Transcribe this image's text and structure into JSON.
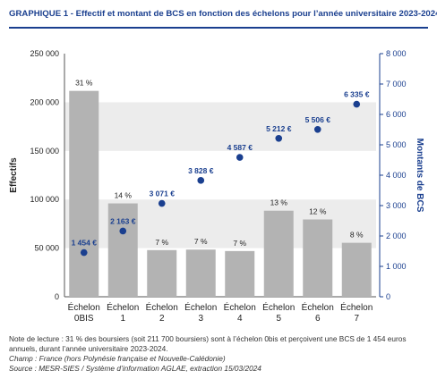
{
  "header": {
    "prefix": "GRAPHIQUE 1",
    "title": " - Effectif et montant de BCS en fonction des échelons pour l’année universitaire 2023-2024"
  },
  "notes": {
    "lecture": "Note de lecture : 31 % des boursiers (soit 211 700 boursiers) sont à l’échelon 0bis et perçoivent une BCS de 1 454 euros annuels, durant l’année universitaire 2023-2024.",
    "champ": "Champ : France (hors Polynésie française et Nouvelle-Calédonie)",
    "source": "Source : MESR-SIES / Système d’information AGLAE, extraction 15/03/2024"
  },
  "colors": {
    "bar": "#b3b3b3",
    "point": "#1a3f8f",
    "label_right": "#1a3f8f",
    "band": "#ececec",
    "axis_right": "#1a3f8f"
  },
  "chart_data": {
    "type": "bar",
    "categories": [
      [
        "Échelon",
        "0BIS"
      ],
      [
        "Échelon",
        "1"
      ],
      [
        "Échelon",
        "2"
      ],
      [
        "Échelon",
        "3"
      ],
      [
        "Échelon",
        "4"
      ],
      [
        "Échelon",
        "5"
      ],
      [
        "Échelon",
        "6"
      ],
      [
        "Échelon",
        "7"
      ]
    ],
    "ylabel": "Effectifs",
    "y2label": "Montants de BCS",
    "ylim": [
      0,
      250000
    ],
    "y2lim": [
      0,
      8000
    ],
    "yticks": [
      "0",
      "50 000",
      "100 000",
      "150 000",
      "200 000",
      "250 000"
    ],
    "y2ticks": [
      "0",
      "1 000",
      "2 000",
      "3 000",
      "4 000",
      "5 000",
      "6 000",
      "7 000",
      "8 000"
    ],
    "bars": {
      "values": [
        211700,
        96000,
        48000,
        48500,
        47000,
        88500,
        79500,
        55500
      ],
      "labels": [
        "31 %",
        "14 %",
        "7 %",
        "7 %",
        "7 %",
        "13 %",
        "12 %",
        "8 %"
      ]
    },
    "points": {
      "values": [
        1454,
        2163,
        3071,
        3828,
        4587,
        5212,
        5506,
        6335
      ],
      "labels": [
        "1 454 €",
        "2 163 €",
        "3 071 €",
        "3 828 €",
        "4 587 €",
        "5 212 €",
        "5 506 €",
        "6 335 €"
      ]
    },
    "grid_bands": true,
    "legend": "none"
  }
}
